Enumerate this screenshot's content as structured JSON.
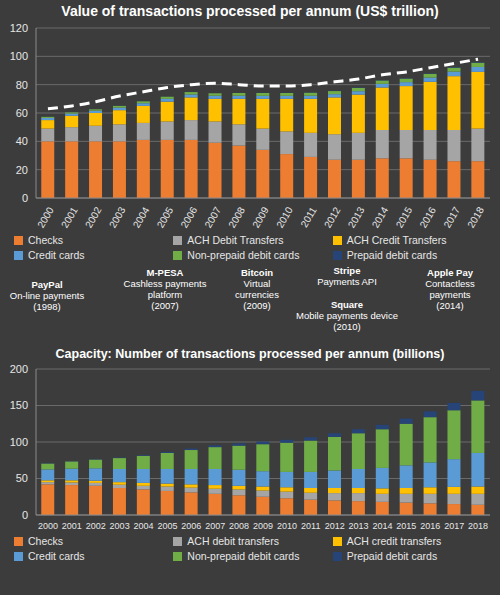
{
  "chart_data": [
    {
      "type": "bar",
      "title": "Value of transactions processed per annum (US$ trillion)",
      "stacked": true,
      "grid": true,
      "legend": "bottom",
      "categories": [
        "2000",
        "2001",
        "2002",
        "2003",
        "2004",
        "2005",
        "2006",
        "2007",
        "2008",
        "2009",
        "2010",
        "2011",
        "2012",
        "2013",
        "2014",
        "2015",
        "2016",
        "2017",
        "2018"
      ],
      "ylim": [
        0,
        120
      ],
      "yticks": [
        0,
        20,
        40,
        60,
        80,
        100,
        120
      ],
      "series": [
        {
          "name": "Checks",
          "color": "#ed7d31",
          "values": [
            40,
            40,
            40,
            40,
            41,
            41,
            41,
            39,
            37,
            34,
            31,
            29,
            27,
            27,
            28,
            28,
            27,
            26,
            26
          ]
        },
        {
          "name": "ACH Debit Transfers",
          "color": "#a5a5a5",
          "values": [
            9,
            10,
            11,
            12,
            12,
            13,
            14,
            15,
            15,
            15,
            16,
            17,
            18,
            19,
            20,
            20,
            21,
            22,
            23
          ]
        },
        {
          "name": "ACH Credit Transfers",
          "color": "#ffc000",
          "values": [
            6,
            8,
            9,
            10,
            12,
            14,
            16,
            16,
            18,
            21,
            23,
            24,
            26,
            27,
            30,
            31,
            34,
            38,
            40
          ]
        },
        {
          "name": "Credit cards",
          "color": "#5b9bd5",
          "values": [
            1.5,
            1.6,
            1.7,
            1.8,
            1.9,
            2.0,
            2.1,
            2.2,
            2.2,
            2.1,
            2.1,
            2.2,
            2.3,
            2.4,
            2.6,
            2.8,
            3.0,
            3.2,
            3.5
          ]
        },
        {
          "name": "Non-prepaid debit cards",
          "color": "#70ad47",
          "values": [
            0.8,
            0.9,
            1.0,
            1.2,
            1.4,
            1.5,
            1.7,
            1.8,
            1.9,
            2.0,
            2.0,
            2.1,
            2.2,
            2.3,
            2.4,
            2.5,
            2.6,
            2.8,
            3.0
          ]
        },
        {
          "name": "Prepaid debit cards",
          "color": "#264478",
          "values": [
            0.1,
            0.1,
            0.1,
            0.1,
            0.1,
            0.1,
            0.1,
            0.1,
            0.1,
            0.2,
            0.2,
            0.2,
            0.2,
            0.3,
            0.3,
            0.3,
            0.3,
            0.4,
            0.4
          ]
        },
        {
          "type": "line",
          "color": "#ffffff",
          "line_style": "dashed",
          "values": [
            63,
            65,
            68,
            72,
            75,
            78,
            80,
            81,
            80,
            79,
            79,
            80,
            82,
            84,
            87,
            89,
            92,
            95,
            98
          ]
        }
      ]
    },
    {
      "type": "bar",
      "title": "Capacity: Number of transactions processed per annum (billions)",
      "stacked": true,
      "grid": true,
      "legend": "bottom",
      "categories": [
        "2000",
        "2001",
        "2002",
        "2003",
        "2004",
        "2005",
        "2006",
        "2007",
        "2008",
        "2009",
        "2010",
        "2011",
        "2012",
        "2013",
        "2014",
        "2015",
        "2016",
        "2017",
        "2018"
      ],
      "ylim": [
        0,
        200
      ],
      "yticks": [
        0,
        50,
        100,
        150,
        200
      ],
      "series": [
        {
          "name": "Checks",
          "color": "#ed7d31",
          "values": [
            42,
            41,
            40,
            37,
            35,
            33,
            31,
            29,
            27,
            25,
            23,
            21,
            20,
            19,
            18,
            17,
            16,
            15,
            14
          ]
        },
        {
          "name": "ACH debit transfers",
          "color": "#a5a5a5",
          "values": [
            3,
            3.5,
            4,
            4.5,
            5,
            6,
            6.5,
            7,
            8,
            8.5,
            9,
            9.5,
            10,
            11,
            11,
            12,
            13,
            14,
            15
          ]
        },
        {
          "name": "ACH credit transfers",
          "color": "#ffc000",
          "values": [
            2.5,
            3,
            3,
            3.5,
            4,
            4,
            4.5,
            5,
            5,
            5.5,
            6,
            6.5,
            7,
            7,
            7.5,
            8,
            9,
            9.5,
            10
          ]
        },
        {
          "name": "Credit cards",
          "color": "#5b9bd5",
          "values": [
            15,
            16,
            17,
            18,
            19,
            20,
            21,
            22,
            22,
            21,
            21,
            22,
            24,
            26,
            28,
            31,
            34,
            38,
            46
          ]
        },
        {
          "name": "Non-prepaid debit cards",
          "color": "#70ad47",
          "values": [
            8,
            10,
            12,
            15,
            18,
            22,
            26,
            30,
            33,
            37,
            40,
            43,
            46,
            49,
            53,
            57,
            62,
            67,
            72
          ]
        },
        {
          "name": "Prepaid debit cards",
          "color": "#264478",
          "values": [
            0.5,
            0.5,
            0.6,
            0.7,
            1,
            1.5,
            2,
            2.5,
            3,
            3.5,
            4,
            4.5,
            5,
            5.5,
            6,
            7,
            8,
            10,
            13
          ]
        }
      ]
    }
  ],
  "annotations": [
    {
      "title": "PayPal",
      "lines": [
        "On-line payments",
        "(1998)"
      ]
    },
    {
      "title": "M-PESA",
      "lines": [
        "Cashless payments",
        "platform",
        "(2007)"
      ]
    },
    {
      "title": "Bitcoin",
      "lines": [
        "Virtual",
        "currencies",
        "(2009)"
      ]
    },
    {
      "title": "Stripe",
      "lines": [
        "Payments API"
      ]
    },
    {
      "title": "Square",
      "lines": [
        "Mobile payments device",
        "(2010)"
      ]
    },
    {
      "title": "Apple Pay",
      "lines": [
        "Contactless",
        "payments",
        "(2014)"
      ]
    }
  ]
}
